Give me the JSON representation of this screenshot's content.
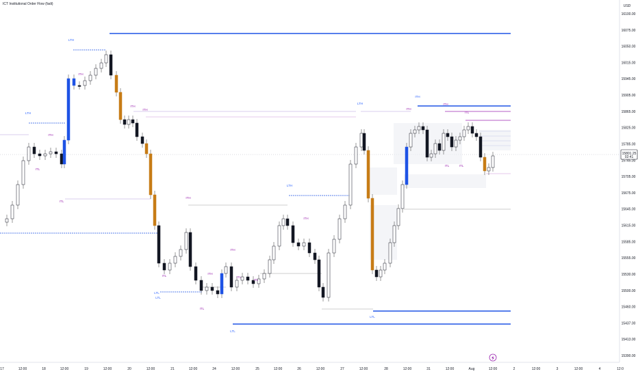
{
  "chart_title": "ICT Institutional Order Flow (fadi)",
  "colors": {
    "bg": "#ffffff",
    "wick": "#555555",
    "up": "#ffffff",
    "down": "#131722",
    "bull_leg": "#1e53e5",
    "bear_leg": "#c77c16",
    "lth": "#1e53e5",
    "ith": "#9c27b0",
    "label_blue": "#2962ff",
    "label_purple": "#9c27b0",
    "price_box": "#ffffff",
    "axis_text": "#131722"
  },
  "chart_data": {
    "type": "candlestick",
    "currency": "USD",
    "ylim": [
      15390,
      16120
    ],
    "y_ticks": [
      "16100.00",
      "16075.00",
      "16050.00",
      "16015.00",
      "15945.00",
      "15905.00",
      "15865.00",
      "15825.00",
      "15785.00",
      "15745.00",
      "15705.00",
      "15675.00",
      "15645.00",
      "15615.00",
      "15585.00",
      "15555.00",
      "15530.00",
      "15500.00",
      "15460.00",
      "15437.00",
      "15413.00",
      "15390.00"
    ],
    "x_ticks": [
      "17",
      "12:00",
      "18",
      "12:00",
      "19",
      "12:00",
      "20",
      "12:00",
      "21",
      "12:00",
      "24",
      "12:00",
      "25",
      "12:00",
      "26",
      "12:00",
      "27",
      "12:00",
      "28",
      "12:00",
      "31",
      "12:00",
      "Aug",
      "12:00",
      "2",
      "12:00",
      "3",
      "12:00",
      "4",
      "12:0"
    ],
    "last_price": {
      "value": "15801.25",
      "countdown": "02:41"
    },
    "structure_labels": [
      {
        "text": "LTH"
      },
      {
        "text": "LTH"
      },
      {
        "text": "ITH"
      },
      {
        "text": "ITH"
      },
      {
        "text": "ITL"
      },
      {
        "text": "ITL"
      },
      {
        "text": "ITH"
      },
      {
        "text": "ITH"
      },
      {
        "text": "ITL"
      },
      {
        "text": "LTL"
      },
      {
        "text": "ITL"
      },
      {
        "text": "ITH"
      },
      {
        "text": "LTL"
      },
      {
        "text": "ITL"
      },
      {
        "text": "ITH"
      },
      {
        "text": "LTH"
      },
      {
        "text": "ITH"
      },
      {
        "text": "ITL"
      },
      {
        "text": "ITH"
      },
      {
        "text": "LTL"
      },
      {
        "text": "LTH"
      },
      {
        "text": "LTL"
      },
      {
        "text": "ITH"
      },
      {
        "text": "ITL"
      },
      {
        "text": "ITH"
      },
      {
        "text": "ITH"
      },
      {
        "text": "ITL"
      },
      {
        "text": "ITL"
      }
    ]
  }
}
